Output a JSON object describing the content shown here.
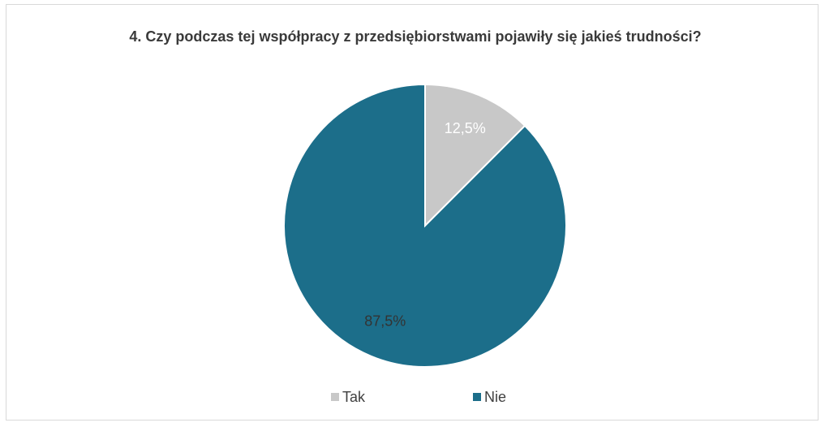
{
  "chart_data": {
    "type": "pie",
    "title": "4. Czy podczas tej współpracy z przedsiębiorstwami pojawiły się jakieś trudności?",
    "categories": [
      "Tak",
      "Nie"
    ],
    "values": [
      12.5,
      87.5
    ],
    "value_labels": [
      "12,5%",
      "87,5%"
    ],
    "colors": [
      "#c8c8c8",
      "#1c6e8a"
    ],
    "legend": "bottom"
  }
}
